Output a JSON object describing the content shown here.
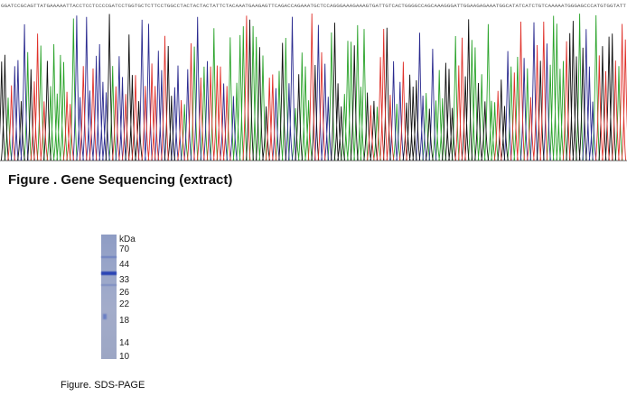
{
  "chart_data": {
    "type": "line",
    "title": "",
    "sequence": "GGATCCGCAGTTATGAAAAATTACCTCCTCCCCGATCCTGGTGCTCTTCCTGGCCTACTACTACTATTCTACAAATGAAGAGTTCAGACCAGAAATGCTCCAGGGAAAGAAAGTGATTGTCACTGGGGCCAGCAAAGGGATTGGAAGAGAAATGGCATATCATCTGTCAAAAATGGGAGCCCATGTGGTATT",
    "series": [
      {
        "color": "#2aa32a"
      },
      {
        "color": "#2b2b8f"
      },
      {
        "color": "#111111"
      },
      {
        "color": "#e0312a"
      }
    ]
  },
  "captions": {
    "sequencing": "Figure . Gene Sequencing (extract)",
    "sds_page": "Figure. SDS-PAGE"
  },
  "gel": {
    "unit_label": "kDa",
    "markers": [
      "70",
      "44",
      "33",
      "26",
      "22",
      "18",
      "14",
      "10"
    ]
  }
}
